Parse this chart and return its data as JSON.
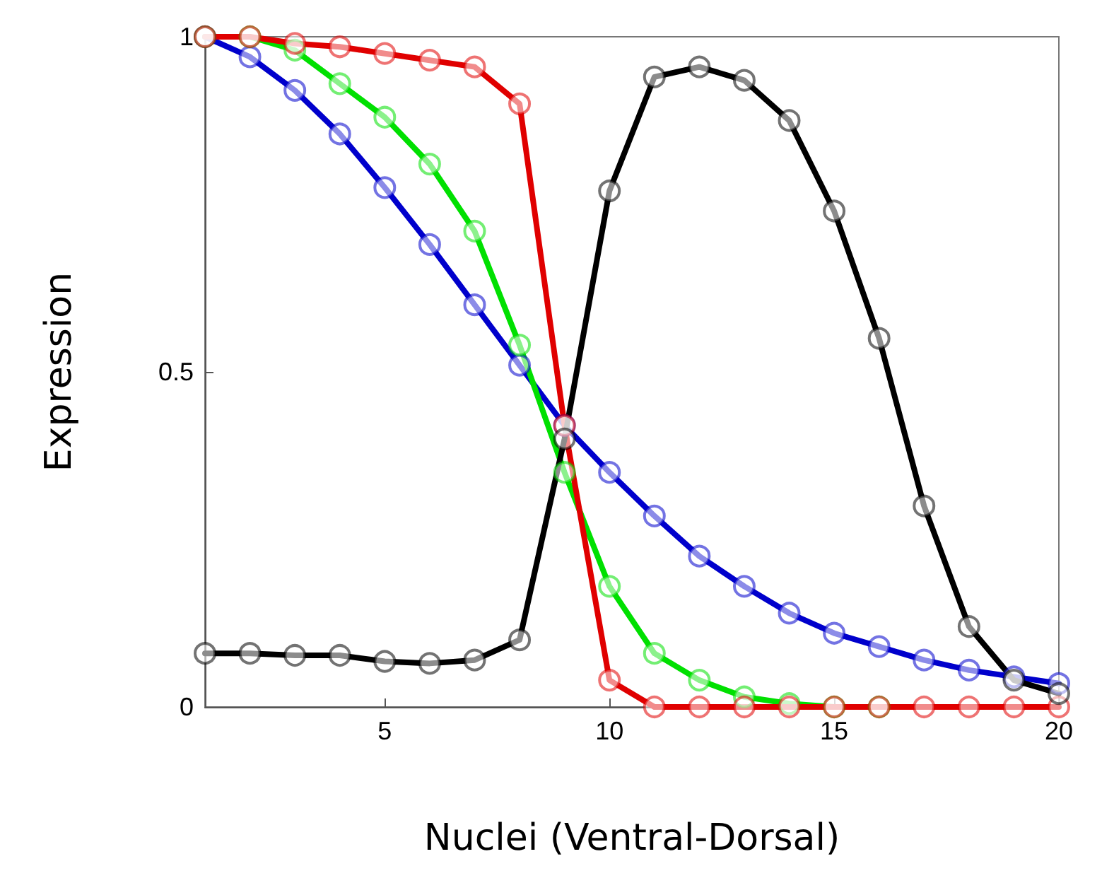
{
  "chart_data": {
    "type": "line",
    "xlabel": "Nuclei (Ventral-Dorsal)",
    "ylabel": "Expression",
    "x": [
      1,
      2,
      3,
      4,
      5,
      6,
      7,
      8,
      9,
      10,
      11,
      12,
      13,
      14,
      15,
      16,
      17,
      18,
      19,
      20
    ],
    "xlim": [
      1,
      20
    ],
    "xticks": [
      5,
      10,
      15,
      20
    ],
    "ylim": [
      0,
      1
    ],
    "yticks": [
      0,
      0.5,
      1
    ],
    "grid": false,
    "marker": "circle",
    "line_style": "solid",
    "series": [
      {
        "color": "#0000cc",
        "values": [
          1.0,
          0.97,
          0.92,
          0.855,
          0.775,
          0.69,
          0.6,
          0.51,
          0.42,
          0.35,
          0.285,
          0.225,
          0.18,
          0.14,
          0.11,
          0.09,
          0.07,
          0.055,
          0.045,
          0.035
        ]
      },
      {
        "color": "#00e000",
        "values": [
          1.0,
          1.0,
          0.98,
          0.93,
          0.88,
          0.81,
          0.71,
          0.54,
          0.35,
          0.18,
          0.08,
          0.04,
          0.015,
          0.005,
          0,
          0,
          null,
          null,
          null,
          null
        ]
      },
      {
        "color": "#e00000",
        "values": [
          1.0,
          1.0,
          0.99,
          0.985,
          0.975,
          0.965,
          0.955,
          0.9,
          0.42,
          0.04,
          0,
          0,
          0,
          0,
          0,
          0,
          0,
          0,
          0,
          0
        ]
      },
      {
        "color": "#000000",
        "values": [
          0.08,
          0.08,
          0.077,
          0.077,
          0.068,
          0.065,
          0.07,
          0.1,
          0.4,
          0.77,
          0.94,
          0.955,
          0.935,
          0.875,
          0.74,
          0.55,
          0.3,
          0.12,
          0.04,
          0.02
        ]
      }
    ]
  }
}
